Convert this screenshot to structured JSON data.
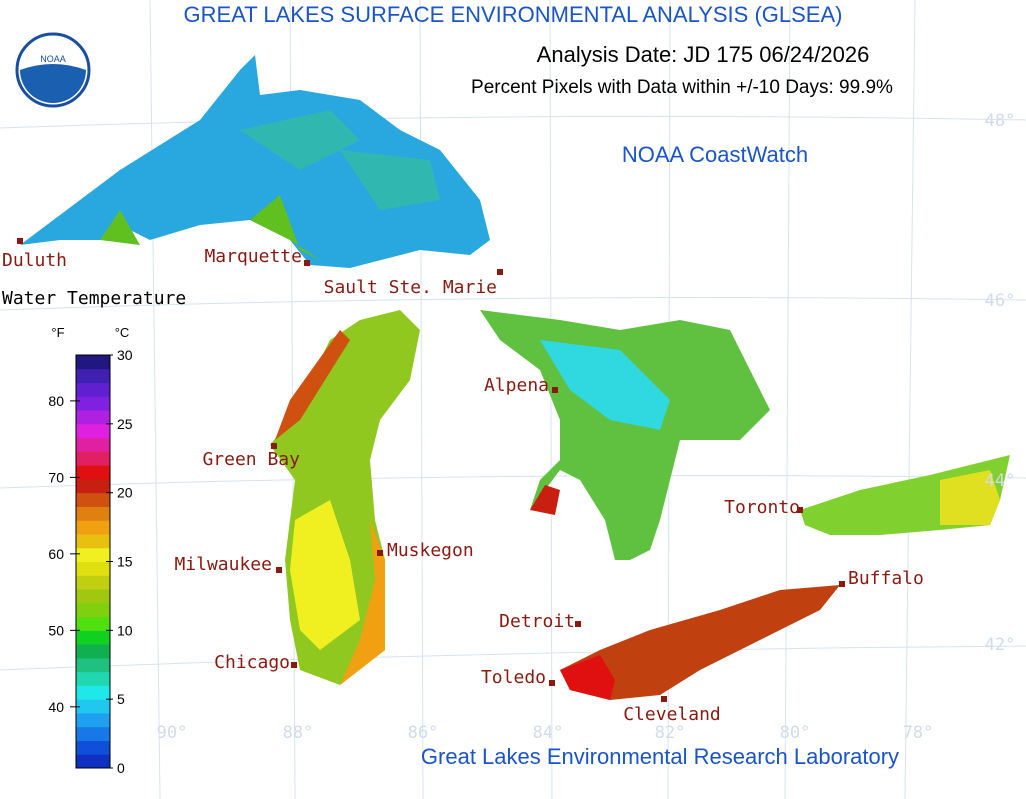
{
  "header": {
    "title": "GREAT LAKES SURFACE ENVIRONMENTAL ANALYSIS (GLSEA)",
    "analysis_date": "Analysis Date:  JD 175 06/24/2026",
    "percent_pixels": "Percent Pixels with Data within +/-10 Days:  99.9%",
    "source": "NOAA CoastWatch",
    "logo_text": "NOAA"
  },
  "cities": [
    "Duluth",
    "Marquette",
    "Sault Ste. Marie",
    "Alpena",
    "Green Bay",
    "Toronto",
    "Muskegon",
    "Milwaukee",
    "Buffalo",
    "Detroit",
    "Chicago",
    "Toledo",
    "Cleveland"
  ],
  "latitudes": [
    "48°",
    "46°",
    "44°",
    "42°"
  ],
  "longitudes": [
    "90°",
    "88°",
    "86°",
    "84°",
    "82°",
    "80°",
    "78°"
  ],
  "legend": {
    "title": "Water Temperature",
    "f_label": "°F",
    "c_label": "°C",
    "f_ticks": [
      40,
      50,
      60,
      70,
      80
    ],
    "c_ticks": [
      0,
      5,
      10,
      15,
      20,
      25,
      30
    ],
    "colors": [
      "#1030c0",
      "#1050d8",
      "#1878e8",
      "#20a0f0",
      "#20c8f0",
      "#20e8e8",
      "#20d8b0",
      "#20c080",
      "#10b050",
      "#10d020",
      "#50e010",
      "#80d010",
      "#a0c810",
      "#c0d010",
      "#e0e010",
      "#f0f020",
      "#e8c010",
      "#f0a010",
      "#e08010",
      "#d05010",
      "#c82010",
      "#e01010",
      "#e02060",
      "#e020a0",
      "#e020e0",
      "#b020e0",
      "#8020e0",
      "#6020d0",
      "#4020b0",
      "#201880"
    ]
  },
  "footer": "Great Lakes Environmental Research Laboratory"
}
